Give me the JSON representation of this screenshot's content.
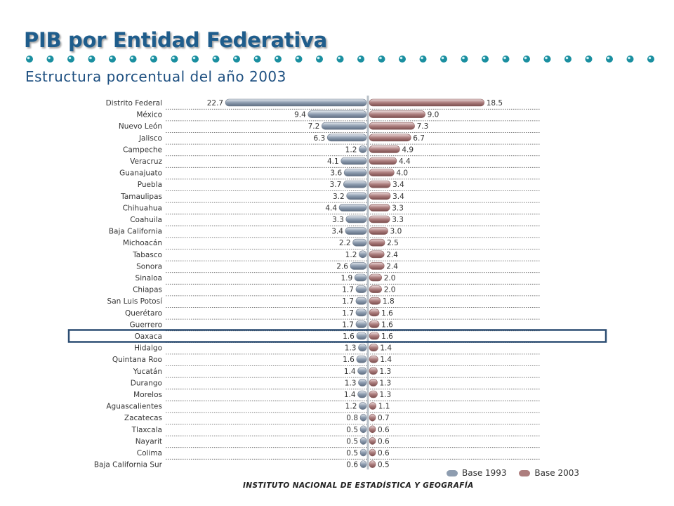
{
  "header": {
    "title": "PIB por Entidad Federativa",
    "subtitle": "Estructura porcentual del año 2003"
  },
  "colors": {
    "title": "#1f5d8c",
    "dots": "#1a8fa0",
    "base1993": "#8e9db0",
    "base2003": "#ad7e7e",
    "highlight": "#2c4d72"
  },
  "highlighted_category": "Oaxaca",
  "footer": {
    "text": "INSTITUTO NACIONAL DE ESTADÍSTICA Y GEOGRAFÍA"
  },
  "chart_data": {
    "type": "bar",
    "orientation": "horizontal-diverging",
    "categories": [
      "Distrito Federal",
      "México",
      "Nuevo León",
      "Jalisco",
      "Campeche",
      "Veracruz",
      "Guanajuato",
      "Puebla",
      "Tamaulipas",
      "Chihuahua",
      "Coahuila",
      "Baja California",
      "Michoacán",
      "Tabasco",
      "Sonora",
      "Sinaloa",
      "Chiapas",
      "San Luis Potosí",
      "Querétaro",
      "Guerrero",
      "Oaxaca",
      "Hidalgo",
      "Quintana Roo",
      "Yucatán",
      "Durango",
      "Morelos",
      "Aguascalientes",
      "Zacatecas",
      "Tlaxcala",
      "Nayarit",
      "Colima",
      "Baja California Sur"
    ],
    "series": [
      {
        "name": "Base 1993",
        "direction": "left",
        "values": [
          22.7,
          9.4,
          7.2,
          6.3,
          1.2,
          4.1,
          3.6,
          3.7,
          3.2,
          4.4,
          3.3,
          3.4,
          2.2,
          1.2,
          2.6,
          1.9,
          1.7,
          1.7,
          1.7,
          1.7,
          1.6,
          1.3,
          1.6,
          1.4,
          1.3,
          1.4,
          1.2,
          0.8,
          0.5,
          0.5,
          0.5,
          0.6
        ]
      },
      {
        "name": "Base 2003",
        "direction": "right",
        "values": [
          18.5,
          9.0,
          7.3,
          6.7,
          4.9,
          4.4,
          4.0,
          3.4,
          3.4,
          3.3,
          3.3,
          3.0,
          2.5,
          2.4,
          2.4,
          2.0,
          2.0,
          1.8,
          1.6,
          1.6,
          1.6,
          1.4,
          1.4,
          1.3,
          1.3,
          1.3,
          1.1,
          0.7,
          0.6,
          0.6,
          0.6,
          0.5
        ]
      }
    ],
    "legend_position": "bottom-right"
  }
}
